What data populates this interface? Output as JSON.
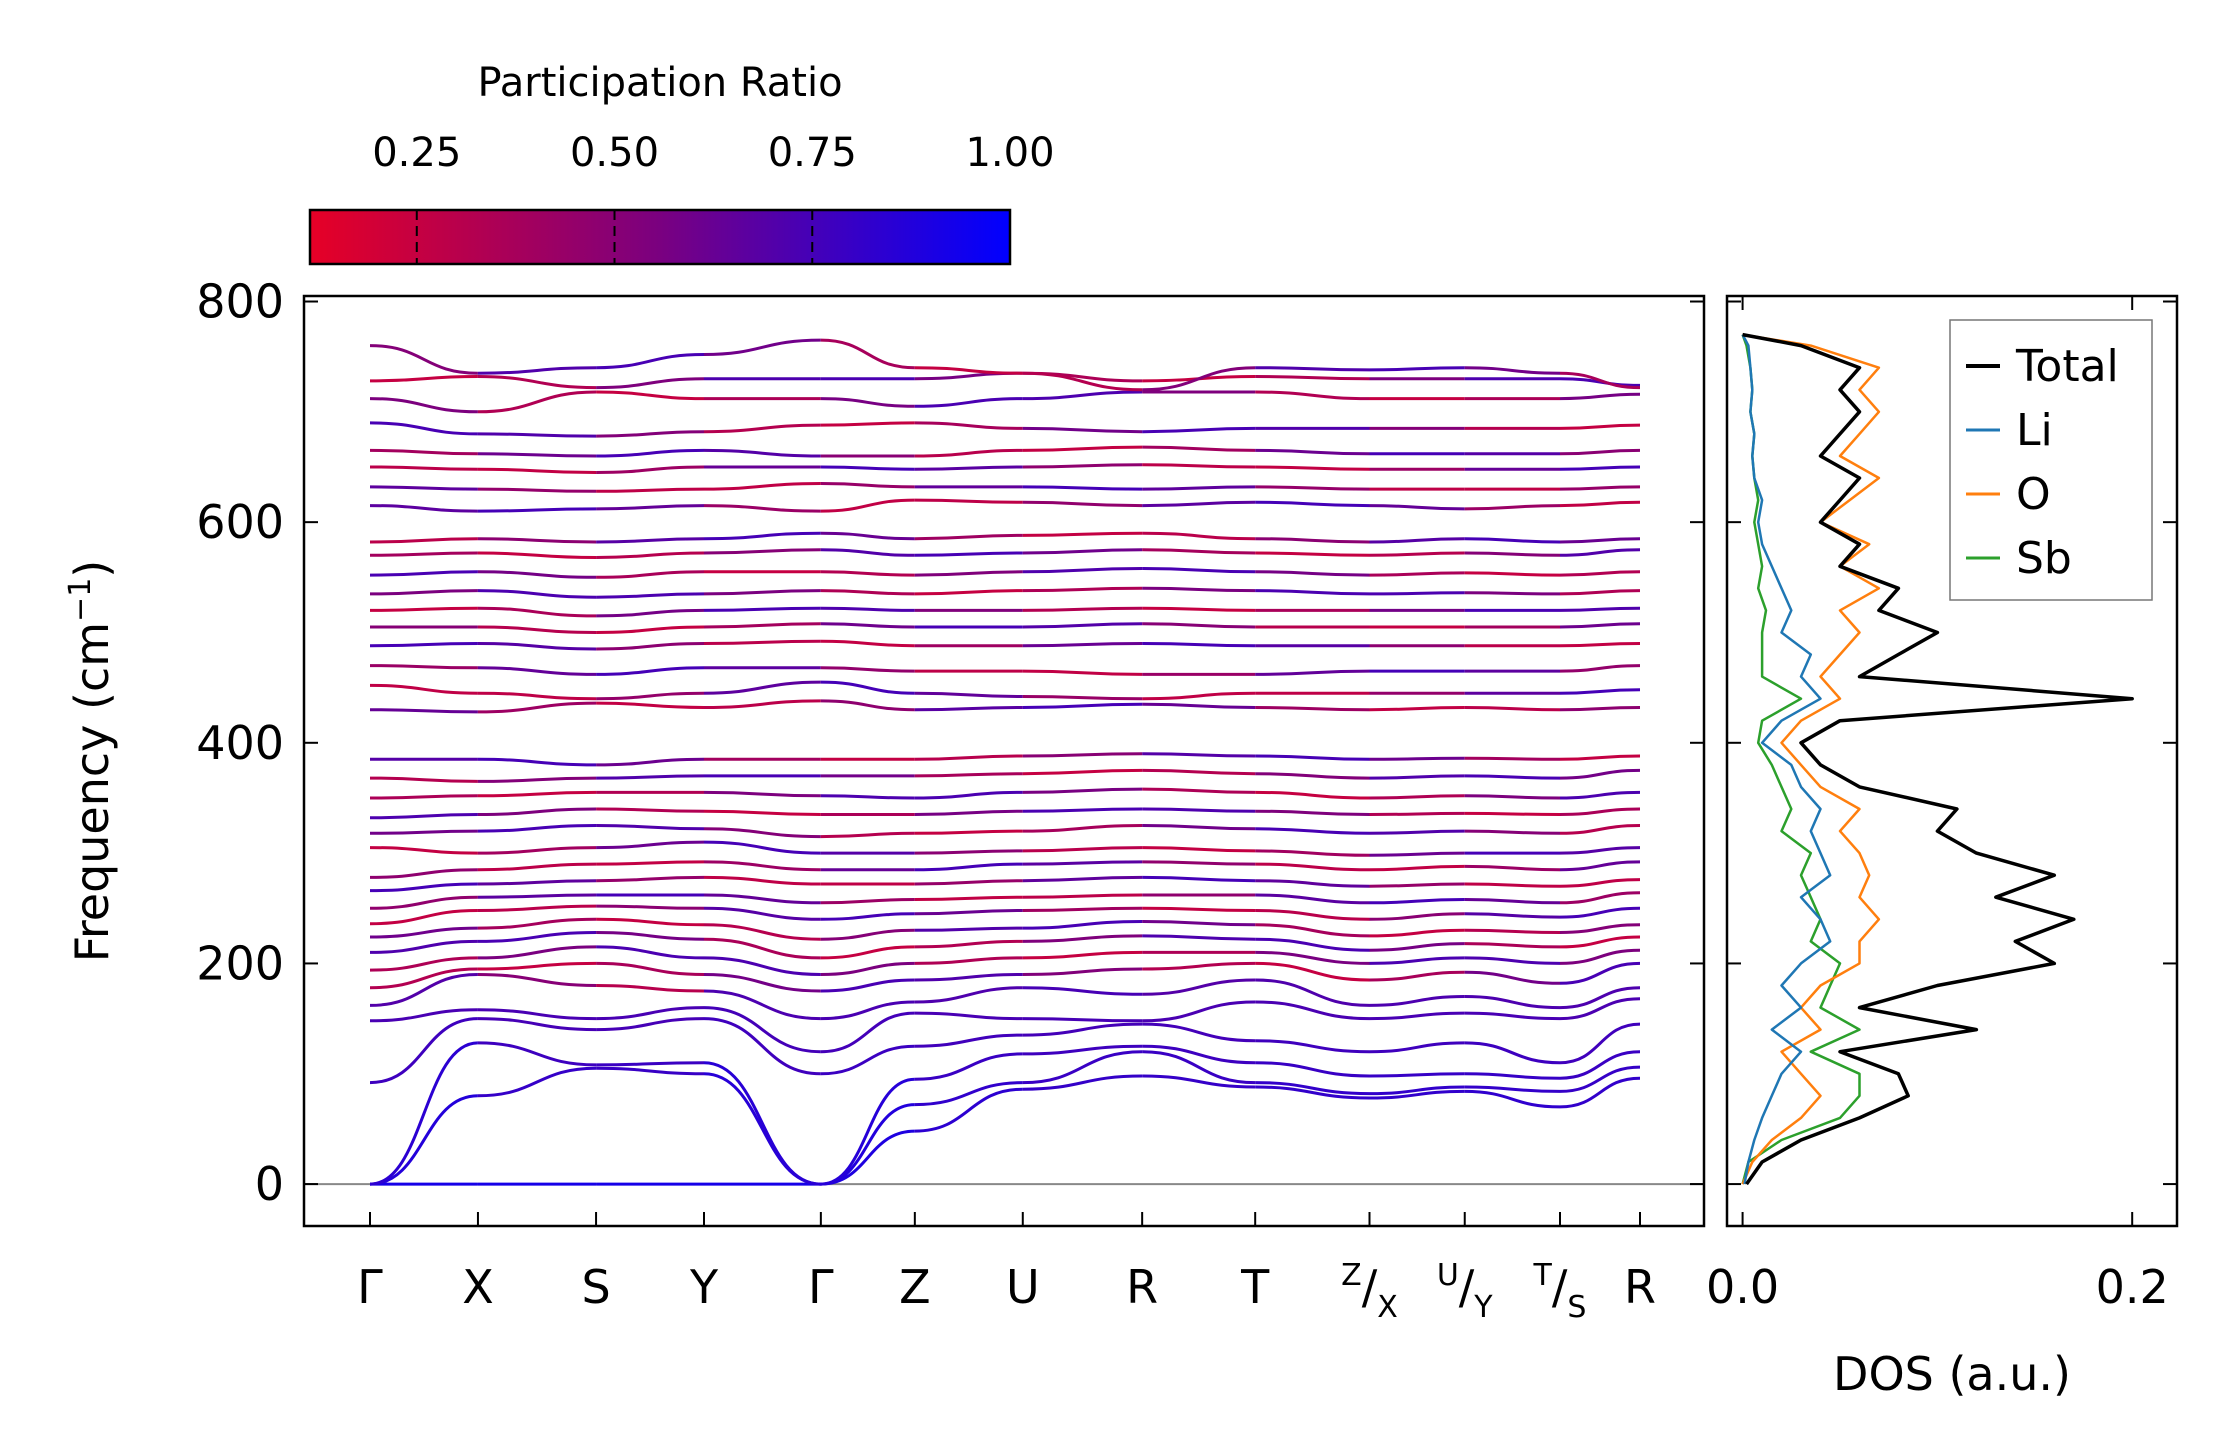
{
  "chart_data": [
    {
      "panel": "phonon band structure",
      "type": "line",
      "ylabel": "Frequency (cm",
      "ylabel_sup": "−1",
      "ylabel_suffix": ")",
      "ylim": [
        -38,
        805
      ],
      "yticks": [
        0,
        200,
        400,
        600,
        800
      ],
      "kpath": [
        {
          "label": "Γ",
          "sub": "",
          "sup": ""
        },
        {
          "label": "X",
          "sub": "",
          "sup": ""
        },
        {
          "label": "S",
          "sub": "",
          "sup": ""
        },
        {
          "label": "Y",
          "sub": "",
          "sup": ""
        },
        {
          "label": "Γ",
          "sub": "",
          "sup": ""
        },
        {
          "label": "Z",
          "sub": "",
          "sup": ""
        },
        {
          "label": "U",
          "sub": "",
          "sup": ""
        },
        {
          "label": "R",
          "sub": "",
          "sup": ""
        },
        {
          "label": "T",
          "sub": "",
          "sup": ""
        },
        {
          "label": "/",
          "sub": "X",
          "sup": "Z"
        },
        {
          "label": "/",
          "sub": "Y",
          "sup": "U"
        },
        {
          "label": "/",
          "sub": "S",
          "sup": "T"
        },
        {
          "label": "R",
          "sub": "",
          "sup": ""
        }
      ],
      "kpos": [
        0,
        0.085,
        0.178,
        0.263,
        0.355,
        0.429,
        0.514,
        0.608,
        0.697,
        0.787,
        0.862,
        0.937,
        1.0
      ],
      "segments": [
        [
          0,
          4
        ],
        [
          4,
          5
        ],
        [
          5,
          9
        ],
        [
          9,
          10
        ],
        [
          10,
          11
        ],
        [
          11,
          12
        ]
      ],
      "bands_at_kpoints": [
        [
          0,
          0,
          0,
          0,
          0,
          48,
          86,
          98,
          88,
          78,
          84,
          70,
          96
        ],
        [
          0,
          80,
          105,
          100,
          0,
          72,
          92,
          120,
          92,
          82,
          88,
          84,
          106
        ],
        [
          0,
          128,
          108,
          110,
          0,
          95,
          118,
          125,
          110,
          98,
          100,
          96,
          120
        ],
        [
          92,
          150,
          140,
          150,
          100,
          125,
          135,
          145,
          130,
          120,
          128,
          110,
          145
        ],
        [
          148,
          158,
          150,
          160,
          120,
          155,
          150,
          148,
          165,
          150,
          155,
          150,
          168
        ],
        [
          162,
          190,
          180,
          175,
          150,
          165,
          178,
          172,
          185,
          162,
          170,
          160,
          178
        ],
        [
          178,
          195,
          200,
          190,
          175,
          185,
          190,
          195,
          200,
          185,
          192,
          182,
          200
        ],
        [
          194,
          205,
          215,
          205,
          190,
          200,
          205,
          210,
          210,
          200,
          205,
          200,
          212
        ],
        [
          210,
          220,
          228,
          222,
          205,
          215,
          220,
          225,
          222,
          212,
          218,
          215,
          224
        ],
        [
          224,
          232,
          240,
          235,
          222,
          230,
          232,
          238,
          235,
          225,
          230,
          228,
          235
        ],
        [
          236,
          248,
          252,
          250,
          240,
          245,
          248,
          250,
          248,
          240,
          245,
          242,
          250
        ],
        [
          250,
          260,
          262,
          262,
          255,
          258,
          260,
          262,
          262,
          255,
          258,
          255,
          264
        ],
        [
          266,
          272,
          275,
          278,
          272,
          272,
          275,
          278,
          275,
          270,
          272,
          270,
          276
        ],
        [
          278,
          285,
          290,
          292,
          285,
          285,
          290,
          292,
          290,
          285,
          288,
          285,
          292
        ],
        [
          305,
          300,
          305,
          310,
          300,
          300,
          302,
          305,
          302,
          298,
          300,
          300,
          305
        ],
        [
          318,
          320,
          325,
          322,
          315,
          318,
          320,
          325,
          322,
          318,
          320,
          318,
          325
        ],
        [
          332,
          335,
          340,
          338,
          335,
          335,
          338,
          340,
          338,
          335,
          336,
          335,
          340
        ],
        [
          350,
          352,
          355,
          355,
          352,
          350,
          355,
          358,
          355,
          350,
          352,
          350,
          355
        ],
        [
          368,
          365,
          368,
          370,
          370,
          370,
          372,
          375,
          372,
          368,
          370,
          368,
          375
        ],
        [
          385,
          385,
          380,
          385,
          385,
          385,
          388,
          390,
          388,
          385,
          386,
          385,
          388
        ],
        [
          430,
          428,
          436,
          432,
          438,
          430,
          432,
          435,
          432,
          430,
          432,
          430,
          432
        ],
        [
          452,
          445,
          440,
          445,
          455,
          445,
          442,
          440,
          445,
          445,
          445,
          445,
          448
        ],
        [
          470,
          468,
          462,
          468,
          468,
          465,
          465,
          462,
          462,
          465,
          465,
          465,
          470
        ],
        [
          488,
          490,
          485,
          490,
          492,
          488,
          488,
          490,
          488,
          488,
          488,
          488,
          490
        ],
        [
          505,
          505,
          500,
          505,
          508,
          505,
          505,
          508,
          505,
          505,
          505,
          505,
          508
        ],
        [
          520,
          522,
          515,
          520,
          522,
          520,
          520,
          522,
          520,
          520,
          520,
          520,
          522
        ],
        [
          535,
          538,
          532,
          535,
          538,
          535,
          538,
          540,
          538,
          535,
          536,
          535,
          538
        ],
        [
          552,
          555,
          550,
          555,
          555,
          552,
          555,
          558,
          555,
          552,
          554,
          552,
          555
        ],
        [
          570,
          572,
          568,
          572,
          575,
          570,
          572,
          575,
          572,
          570,
          572,
          570,
          575
        ],
        [
          582,
          585,
          582,
          585,
          590,
          585,
          588,
          590,
          585,
          582,
          585,
          582,
          585
        ],
        [
          615,
          610,
          612,
          615,
          610,
          620,
          618,
          615,
          618,
          615,
          612,
          615,
          618
        ],
        [
          632,
          630,
          628,
          630,
          635,
          632,
          632,
          630,
          632,
          630,
          630,
          630,
          632
        ],
        [
          650,
          648,
          645,
          650,
          650,
          648,
          650,
          652,
          650,
          648,
          648,
          648,
          650
        ],
        [
          665,
          662,
          660,
          665,
          660,
          660,
          665,
          668,
          665,
          662,
          662,
          662,
          665
        ],
        [
          690,
          680,
          678,
          682,
          688,
          690,
          685,
          682,
          685,
          685,
          685,
          685,
          688
        ],
        [
          712,
          700,
          718,
          712,
          712,
          705,
          712,
          718,
          718,
          712,
          712,
          712,
          716
        ],
        [
          728,
          732,
          722,
          730,
          730,
          730,
          735,
          728,
          732,
          730,
          730,
          730,
          724
        ],
        [
          760,
          735,
          740,
          752,
          765,
          740,
          735,
          720,
          740,
          738,
          740,
          735,
          722
        ]
      ]
    },
    {
      "panel": "density of states",
      "type": "line",
      "xlabel": "DOS (a.u.)",
      "xlim": [
        -0.008,
        0.223
      ],
      "xticks": [
        "0.0",
        "0.2"
      ],
      "xtick_values": [
        0.0,
        0.2
      ],
      "ylim": [
        -38,
        805
      ],
      "freq": [
        0,
        20,
        40,
        60,
        80,
        100,
        120,
        140,
        160,
        180,
        200,
        220,
        240,
        260,
        280,
        300,
        320,
        340,
        360,
        380,
        400,
        420,
        440,
        460,
        480,
        500,
        520,
        540,
        560,
        580,
        600,
        620,
        640,
        660,
        680,
        700,
        720,
        740,
        760,
        770
      ],
      "series": [
        {
          "name": "Total",
          "color": "#000000",
          "values": [
            0.002,
            0.01,
            0.03,
            0.06,
            0.085,
            0.08,
            0.05,
            0.12,
            0.06,
            0.1,
            0.16,
            0.14,
            0.17,
            0.13,
            0.16,
            0.12,
            0.1,
            0.11,
            0.06,
            0.04,
            0.03,
            0.05,
            0.2,
            0.06,
            0.08,
            0.1,
            0.07,
            0.08,
            0.05,
            0.06,
            0.04,
            0.05,
            0.06,
            0.04,
            0.05,
            0.06,
            0.05,
            0.06,
            0.03,
            0.0
          ]
        },
        {
          "name": "Li",
          "color": "#1f77b4",
          "values": [
            0.001,
            0.003,
            0.006,
            0.01,
            0.015,
            0.02,
            0.03,
            0.015,
            0.03,
            0.02,
            0.03,
            0.045,
            0.04,
            0.03,
            0.045,
            0.04,
            0.035,
            0.04,
            0.03,
            0.025,
            0.01,
            0.02,
            0.04,
            0.03,
            0.035,
            0.02,
            0.025,
            0.02,
            0.015,
            0.01,
            0.008,
            0.01,
            0.006,
            0.005,
            0.006,
            0.004,
            0.005,
            0.004,
            0.003,
            0.0
          ]
        },
        {
          "name": "O",
          "color": "#ff7f0e",
          "values": [
            0.0,
            0.005,
            0.015,
            0.03,
            0.04,
            0.03,
            0.02,
            0.04,
            0.03,
            0.04,
            0.06,
            0.06,
            0.07,
            0.06,
            0.065,
            0.06,
            0.05,
            0.06,
            0.04,
            0.03,
            0.02,
            0.03,
            0.05,
            0.04,
            0.05,
            0.06,
            0.05,
            0.07,
            0.05,
            0.065,
            0.04,
            0.055,
            0.07,
            0.05,
            0.06,
            0.07,
            0.06,
            0.07,
            0.035,
            0.0
          ]
        },
        {
          "name": "Sb",
          "color": "#2ca02c",
          "values": [
            0.0,
            0.003,
            0.02,
            0.05,
            0.06,
            0.06,
            0.035,
            0.06,
            0.04,
            0.045,
            0.05,
            0.035,
            0.04,
            0.035,
            0.03,
            0.035,
            0.02,
            0.025,
            0.02,
            0.015,
            0.008,
            0.01,
            0.03,
            0.01,
            0.01,
            0.01,
            0.012,
            0.008,
            0.01,
            0.008,
            0.006,
            0.008,
            0.006,
            0.005,
            0.006,
            0.004,
            0.005,
            0.004,
            0.002,
            0.0
          ]
        }
      ]
    }
  ],
  "colorbar": {
    "title": "Participation Ratio",
    "ticks": [
      "0.25",
      "0.50",
      "0.75",
      "1.00"
    ],
    "tick_values": [
      0.25,
      0.5,
      0.75,
      1.0
    ],
    "range": [
      0.115,
      1.0
    ],
    "color_low": "#e60026",
    "color_mid": "#7a0080",
    "color_high": "#0000ff"
  },
  "legend": {
    "placement": "top-right",
    "items": [
      "Total",
      "Li",
      "O",
      "Sb"
    ]
  }
}
